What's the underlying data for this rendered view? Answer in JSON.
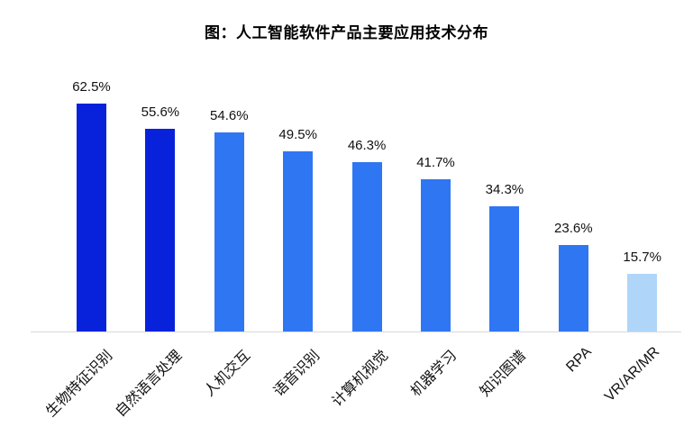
{
  "chart_data": {
    "type": "bar",
    "title": "图：人工智能软件产品主要应用技术分布",
    "categories": [
      "生物特征识别",
      "自然语言处理",
      "人机交互",
      "语音识别",
      "计算机视觉",
      "机器学习",
      "知识图谱",
      "RPA",
      "VR/AR/MR"
    ],
    "values": [
      62.5,
      55.6,
      54.6,
      49.5,
      46.3,
      41.7,
      34.3,
      23.6,
      15.7
    ],
    "value_labels": [
      "62.5%",
      "55.6%",
      "54.6%",
      "49.5%",
      "46.3%",
      "41.7%",
      "34.3%",
      "23.6%",
      "15.7%"
    ],
    "bar_colors": [
      "#0822DB",
      "#0822DB",
      "#2F76F3",
      "#2F76F3",
      "#2F76F3",
      "#2F76F3",
      "#2F76F3",
      "#2F76F3",
      "#AFD6F8"
    ],
    "xlabel": "",
    "ylabel": "",
    "ylim": [
      0,
      65
    ],
    "grid": false,
    "legend": null,
    "label_rotation_deg": -45
  },
  "colors": {
    "background": "#FFFFFF",
    "axis_line": "#D9D9D9",
    "title_text": "#000000",
    "label_text": "#111111"
  }
}
